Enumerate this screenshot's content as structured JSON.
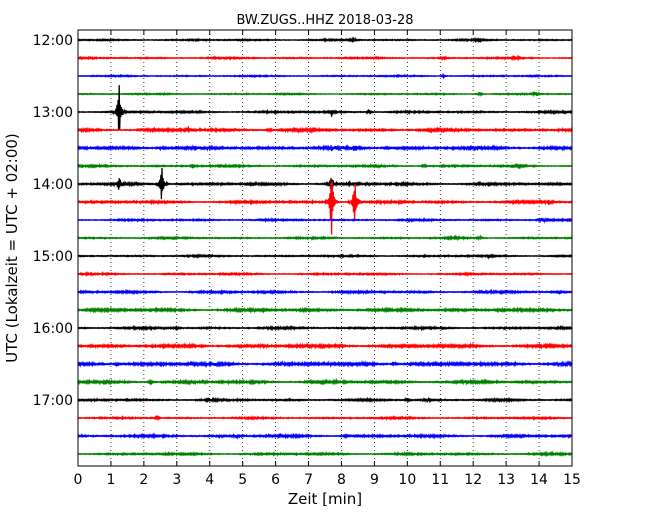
{
  "chart_data": {
    "type": "line",
    "title": "BW.ZUGS..HHZ 2018-03-28",
    "xlabel": "Zeit  [min]",
    "ylabel": "UTC (Lokalzeit = UTC + 02:00)",
    "xlim": [
      0,
      15
    ],
    "x_ticks": [
      "0",
      "1",
      "2",
      "3",
      "4",
      "5",
      "6",
      "7",
      "8",
      "9",
      "10",
      "11",
      "12",
      "13",
      "14",
      "15"
    ],
    "y_tick_labels": [
      "12:00",
      "13:00",
      "14:00",
      "15:00",
      "16:00",
      "17:00"
    ],
    "grid": "vertical dotted, every 1 min",
    "trace_interval_min": 15,
    "trace_colors": [
      "#000000",
      "#ff0000",
      "#0000ff",
      "#008000"
    ],
    "rows": [
      {
        "time": "12:00",
        "color_index": 0,
        "noise": 0.45,
        "events": [
          [
            8.35,
            3.2
          ],
          [
            12.2,
            1.5
          ]
        ]
      },
      {
        "time": "12:15",
        "color_index": 1,
        "noise": 0.45,
        "events": [
          [
            11.1,
            1.5
          ],
          [
            13.3,
            2.2
          ]
        ]
      },
      {
        "time": "12:30",
        "color_index": 2,
        "noise": 0.4,
        "events": [
          [
            11.1,
            1.3
          ]
        ]
      },
      {
        "time": "12:45",
        "color_index": 3,
        "noise": 0.4,
        "events": [
          [
            12.2,
            2.5
          ],
          [
            13.9,
            2.8
          ]
        ]
      },
      {
        "time": "13:00",
        "color_index": 0,
        "noise": 0.55,
        "events": [
          [
            1.25,
            30
          ],
          [
            7.7,
            4
          ],
          [
            8.85,
            2.8
          ]
        ]
      },
      {
        "time": "13:15",
        "color_index": 1,
        "noise": 0.8,
        "events": [
          [
            3.35,
            2.8
          ],
          [
            5.8,
            1.6
          ]
        ]
      },
      {
        "time": "13:30",
        "color_index": 2,
        "noise": 0.9,
        "events": [
          [
            2.55,
            2.2
          ],
          [
            7.7,
            2
          ],
          [
            8.4,
            3
          ],
          [
            9.4,
            1.4
          ]
        ]
      },
      {
        "time": "13:45",
        "color_index": 3,
        "noise": 0.55,
        "events": [
          [
            3.5,
            2.5
          ],
          [
            10.5,
            1.8
          ],
          [
            13.4,
            2.5
          ]
        ]
      },
      {
        "time": "14:00",
        "color_index": 0,
        "noise": 0.7,
        "events": [
          [
            1.25,
            8
          ],
          [
            2.55,
            22
          ],
          [
            7.7,
            10
          ],
          [
            8.25,
            3.5
          ]
        ]
      },
      {
        "time": "14:15",
        "color_index": 1,
        "noise": 0.7,
        "events": [
          [
            7.7,
            40
          ],
          [
            8.4,
            30
          ],
          [
            14.3,
            3
          ]
        ]
      },
      {
        "time": "14:30",
        "color_index": 2,
        "noise": 0.5,
        "events": [
          [
            14.1,
            2.5
          ]
        ]
      },
      {
        "time": "14:45",
        "color_index": 3,
        "noise": 0.5,
        "events": [
          [
            11.45,
            3.2
          ],
          [
            12.2,
            1.5
          ]
        ]
      },
      {
        "time": "15:00",
        "color_index": 0,
        "noise": 0.5,
        "events": [
          [
            12.5,
            1.5
          ]
        ]
      },
      {
        "time": "15:15",
        "color_index": 1,
        "noise": 0.5,
        "events": []
      },
      {
        "time": "15:30",
        "color_index": 2,
        "noise": 0.65,
        "events": [
          [
            12.3,
            1.6
          ],
          [
            14.6,
            1.6
          ]
        ]
      },
      {
        "time": "15:45",
        "color_index": 3,
        "noise": 0.85,
        "events": [
          [
            6.8,
            1.4
          ],
          [
            12.8,
            2.2
          ]
        ]
      },
      {
        "time": "16:00",
        "color_index": 0,
        "noise": 0.6,
        "events": [
          [
            3.0,
            1.3
          ]
        ]
      },
      {
        "time": "16:15",
        "color_index": 1,
        "noise": 0.9,
        "events": [
          [
            8.0,
            2
          ]
        ]
      },
      {
        "time": "16:30",
        "color_index": 2,
        "noise": 1.0,
        "events": [
          [
            1.2,
            1.5
          ],
          [
            9.6,
            2.2
          ],
          [
            14.6,
            1.8
          ]
        ]
      },
      {
        "time": "16:45",
        "color_index": 3,
        "noise": 0.8,
        "events": [
          [
            2.2,
            1.6
          ],
          [
            7.0,
            1.6
          ]
        ]
      },
      {
        "time": "17:00",
        "color_index": 0,
        "noise": 0.6,
        "events": [
          [
            4.0,
            1.8
          ],
          [
            10.0,
            2.2
          ],
          [
            10.6,
            2.5
          ]
        ]
      },
      {
        "time": "17:15",
        "color_index": 1,
        "noise": 0.5,
        "events": [
          [
            2.4,
            1.5
          ]
        ]
      },
      {
        "time": "17:30",
        "color_index": 2,
        "noise": 0.7,
        "events": [
          [
            4.8,
            1.6
          ],
          [
            8.1,
            1.6
          ]
        ]
      },
      {
        "time": "17:45",
        "color_index": 3,
        "noise": 0.6,
        "events": []
      }
    ]
  }
}
